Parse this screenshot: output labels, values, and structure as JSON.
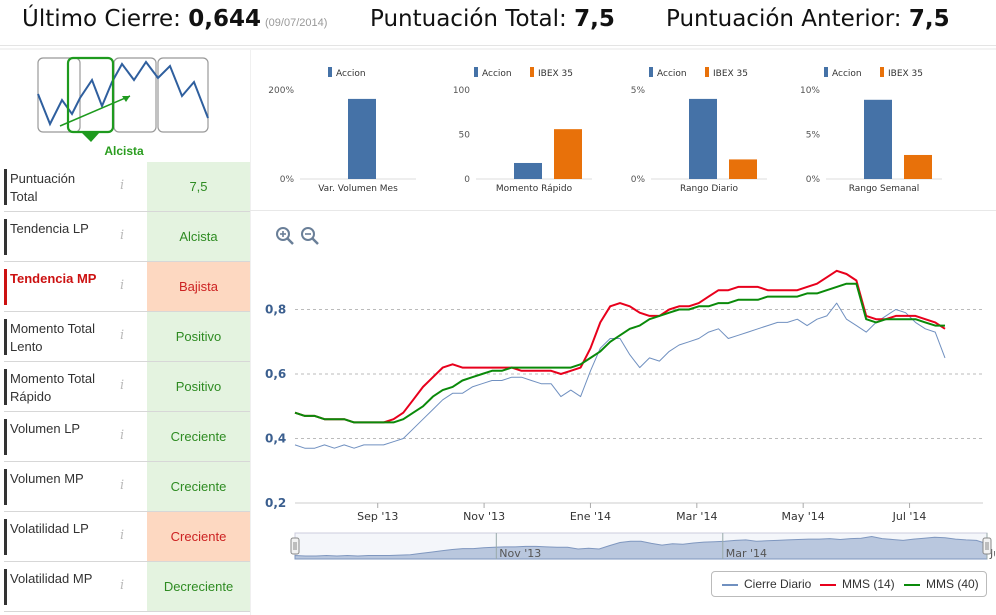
{
  "header": {
    "last_close_label": "Último Cierre:",
    "last_close_value": "0,644",
    "last_close_date": "(09/07/2014)",
    "total_score_label": "Puntuación Total:",
    "total_score_value": "7,5",
    "prev_score_label": "Puntuación Anterior:",
    "prev_score_value": "7,5"
  },
  "trend": {
    "label": "Alcista",
    "accent": "#2a9d1f"
  },
  "indicators": [
    {
      "name": "Puntuación Total",
      "info": "i",
      "value": "7,5",
      "state": "pos"
    },
    {
      "name": "Tendencia LP",
      "info": "i",
      "value": "Alcista",
      "state": "pos"
    },
    {
      "name": "Tendencia MP",
      "info": "i",
      "value": "Bajista",
      "state": "neg",
      "highlight": true
    },
    {
      "name": "Momento Total Lento",
      "info": "i",
      "value": "Positivo",
      "state": "pos"
    },
    {
      "name": "Momento Total Rápido",
      "info": "i",
      "value": "Positivo",
      "state": "pos"
    },
    {
      "name": "Volumen LP",
      "info": "i",
      "value": "Creciente",
      "state": "pos"
    },
    {
      "name": "Volumen MP",
      "info": "i",
      "value": "Creciente",
      "state": "pos"
    },
    {
      "name": "Volatilidad LP",
      "info": "i",
      "value": "Creciente",
      "state": "neg"
    },
    {
      "name": "Volatilidad MP",
      "info": "i",
      "value": "Decreciente",
      "state": "pos"
    }
  ],
  "colors": {
    "accion": "#4572a7",
    "ibex": "#e8710a",
    "red": "#e8001c",
    "green": "#0a8a0a",
    "blue": "#7090c0"
  },
  "chart_data": [
    {
      "type": "bar",
      "title": "Var. Volumen Mes",
      "legend": [
        "Accion"
      ],
      "yticks": [
        "200%",
        "0%"
      ],
      "ylim": [
        0,
        200
      ],
      "values": [
        180
      ]
    },
    {
      "type": "bar",
      "title": "Momento Rápido",
      "legend": [
        "Accion",
        "IBEX 35"
      ],
      "yticks": [
        "100",
        "50",
        "0"
      ],
      "ylim": [
        0,
        100
      ],
      "values": [
        18,
        56
      ]
    },
    {
      "type": "bar",
      "title": "Rango Diario",
      "legend": [
        "Accion",
        "IBEX 35"
      ],
      "yticks": [
        "5%",
        "0%"
      ],
      "ylim": [
        0,
        5
      ],
      "values": [
        4.5,
        1.1
      ]
    },
    {
      "type": "bar",
      "title": "Rango Semanal",
      "legend": [
        "Accion",
        "IBEX 35"
      ],
      "yticks": [
        "10%",
        "5%",
        "0%"
      ],
      "ylim": [
        0,
        10
      ],
      "values": [
        8.9,
        2.7
      ]
    },
    {
      "type": "line",
      "title": "",
      "yticks": [
        "0,8",
        "0,6",
        "0,4",
        "0,2"
      ],
      "ylim": [
        0.2,
        1.0
      ],
      "xticks": [
        "Sep '13",
        "Nov '13",
        "Ene '14",
        "Mar '14",
        "May '14",
        "Jul '14"
      ],
      "navigator_ticks": [
        "Nov '13",
        "Mar '14",
        "Jul '1"
      ],
      "x": [
        0,
        5,
        10,
        15,
        20,
        25,
        30,
        35,
        40,
        45,
        50,
        55,
        60,
        65,
        70,
        75,
        80,
        85,
        90,
        95,
        100,
        105,
        110,
        115,
        120,
        125,
        130,
        135,
        140,
        145,
        150,
        155,
        160,
        165,
        170,
        175,
        180,
        185,
        190,
        195,
        200,
        205,
        210,
        215,
        220,
        225,
        230,
        235,
        240,
        245,
        250,
        255,
        260,
        265,
        270,
        275,
        280,
        285,
        290,
        295,
        300,
        305,
        310,
        315,
        320,
        325,
        330
      ],
      "series": [
        {
          "name": "Cierre Diario",
          "values": [
            0.38,
            0.37,
            0.37,
            0.38,
            0.37,
            0.38,
            0.37,
            0.38,
            0.38,
            0.38,
            0.39,
            0.4,
            0.43,
            0.46,
            0.49,
            0.52,
            0.54,
            0.54,
            0.56,
            0.57,
            0.58,
            0.58,
            0.59,
            0.59,
            0.58,
            0.57,
            0.57,
            0.53,
            0.55,
            0.53,
            0.61,
            0.68,
            0.71,
            0.71,
            0.66,
            0.62,
            0.65,
            0.64,
            0.67,
            0.69,
            0.7,
            0.71,
            0.73,
            0.74,
            0.71,
            0.72,
            0.73,
            0.74,
            0.75,
            0.76,
            0.76,
            0.77,
            0.75,
            0.77,
            0.78,
            0.82,
            0.77,
            0.75,
            0.73,
            0.76,
            0.78,
            0.8,
            0.79,
            0.76,
            0.74,
            0.73,
            0.65
          ]
        },
        {
          "name": "MMS (14)",
          "values": [
            0.48,
            0.47,
            0.47,
            0.46,
            0.46,
            0.46,
            0.45,
            0.45,
            0.45,
            0.45,
            0.46,
            0.48,
            0.52,
            0.56,
            0.59,
            0.62,
            0.63,
            0.62,
            0.62,
            0.62,
            0.62,
            0.62,
            0.62,
            0.61,
            0.61,
            0.61,
            0.61,
            0.6,
            0.61,
            0.62,
            0.68,
            0.76,
            0.81,
            0.82,
            0.81,
            0.79,
            0.78,
            0.78,
            0.8,
            0.81,
            0.81,
            0.82,
            0.84,
            0.86,
            0.86,
            0.87,
            0.87,
            0.87,
            0.86,
            0.86,
            0.86,
            0.86,
            0.87,
            0.88,
            0.9,
            0.92,
            0.91,
            0.89,
            0.78,
            0.77,
            0.77,
            0.78,
            0.78,
            0.78,
            0.77,
            0.76,
            0.74
          ]
        },
        {
          "name": "MMS (40)",
          "values": [
            0.48,
            0.47,
            0.47,
            0.46,
            0.46,
            0.46,
            0.45,
            0.45,
            0.45,
            0.45,
            0.45,
            0.46,
            0.48,
            0.5,
            0.53,
            0.55,
            0.56,
            0.58,
            0.59,
            0.6,
            0.61,
            0.61,
            0.62,
            0.62,
            0.62,
            0.62,
            0.62,
            0.62,
            0.62,
            0.63,
            0.65,
            0.67,
            0.7,
            0.72,
            0.74,
            0.75,
            0.77,
            0.78,
            0.79,
            0.8,
            0.8,
            0.81,
            0.81,
            0.82,
            0.82,
            0.83,
            0.83,
            0.83,
            0.84,
            0.84,
            0.84,
            0.84,
            0.85,
            0.85,
            0.86,
            0.87,
            0.88,
            0.88,
            0.77,
            0.76,
            0.77,
            0.77,
            0.77,
            0.77,
            0.76,
            0.75,
            0.75
          ]
        }
      ]
    }
  ],
  "legend": {
    "items": [
      "Cierre Diario",
      "MMS (14)",
      "MMS (40)"
    ]
  }
}
